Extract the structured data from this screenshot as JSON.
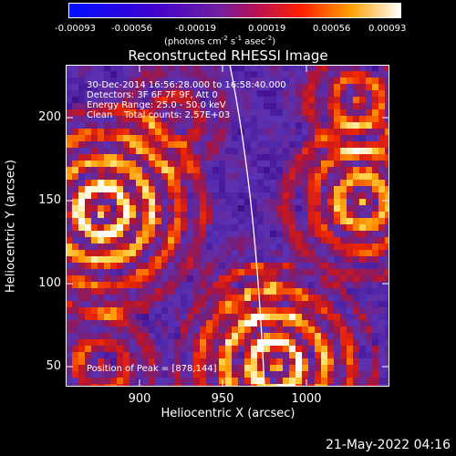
{
  "colorbar": {
    "ticks": [
      "-0.00093",
      "-0.00056",
      "-0.00019",
      "0.00019",
      "0.00056",
      "0.00093"
    ],
    "unit_parts": [
      "(photons cm",
      "-2",
      " s",
      "-1",
      " asec",
      "-2",
      ")"
    ]
  },
  "title": "Reconstructed RHESSI Image",
  "info_lines": [
    "30-Dec-2014 16:56:28.000 to 16:58:40.000",
    "Detectors: 3F 6F 7F 9F, Att 0",
    "Energy Range: 25.0 - 50.0 keV",
    "Clean    Total counts: 2.57E+03"
  ],
  "peak_text": "Position of Peak = [878,144]",
  "axes": {
    "xlabel": "Heliocentric X (arcsec)",
    "ylabel": "Heliocentric Y (arcsec)",
    "xticks": [
      "900",
      "950",
      "1000"
    ],
    "yticks": [
      "200",
      "150",
      "100",
      "50"
    ]
  },
  "timestamp": "21-May-2022 04:16",
  "colors": {
    "limb": "#ffffff",
    "background": "#000000"
  }
}
